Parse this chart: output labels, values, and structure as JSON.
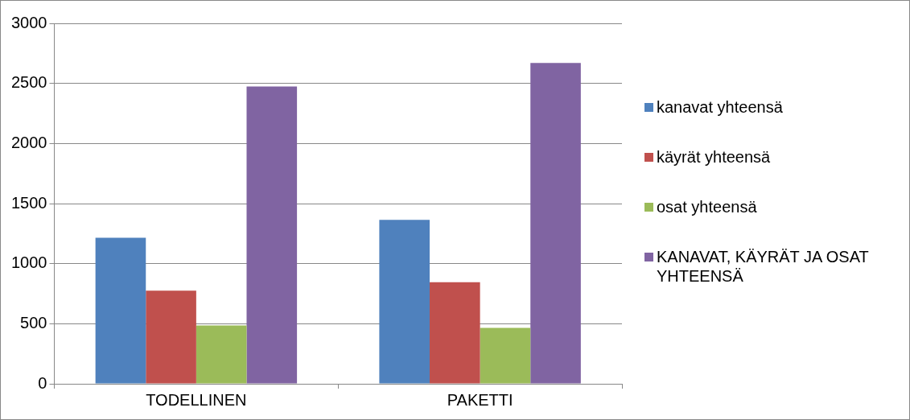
{
  "chart_data": {
    "type": "bar",
    "categories": [
      "TODELLINEN",
      "PAKETTI"
    ],
    "series": [
      {
        "name": "kanavat yhteensä",
        "color": "#4f81bd",
        "values": [
          1215,
          1365
        ]
      },
      {
        "name": "käyrät yhteensä",
        "color": "#c0504d",
        "values": [
          775,
          845
        ]
      },
      {
        "name": "osat yhteensä",
        "color": "#9bbb59",
        "values": [
          485,
          465
        ]
      },
      {
        "name": "KANAVAT, KÄYRÄT JA OSAT YHTEENSÄ",
        "color": "#8064a2",
        "values": [
          2475,
          2670
        ]
      }
    ],
    "ylim": [
      0,
      3000
    ],
    "yticks": [
      0,
      500,
      1000,
      1500,
      2000,
      2500,
      3000
    ],
    "grid": "y",
    "legend": "right"
  }
}
